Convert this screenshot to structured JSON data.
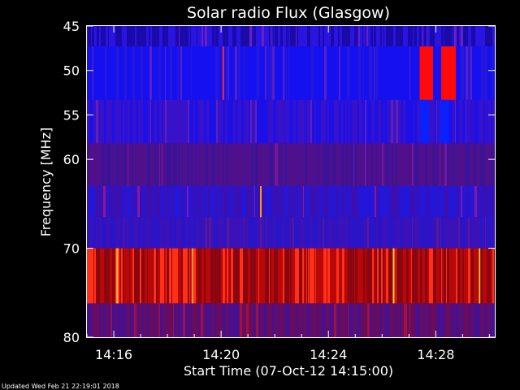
{
  "chart_data": {
    "type": "heatmap",
    "title": "Solar radio Flux (Glasgow)",
    "xlabel": "Start Time (07-Oct-12 14:15:00)",
    "ylabel": "Frequency [MHz]",
    "x_ticks": [
      "14:16",
      "14:20",
      "14:24",
      "14:28"
    ],
    "x_tick_minutes": [
      1,
      5,
      9,
      13
    ],
    "xlim_minutes": [
      0,
      15.2
    ],
    "y_ticks": [
      "45",
      "50",
      "55",
      "60",
      "70",
      "80"
    ],
    "y_tick_values": [
      45,
      50,
      55,
      60,
      70,
      80
    ],
    "ylim": [
      45,
      80
    ],
    "bands": [
      {
        "f0": 45,
        "f1": 47.3,
        "base": "#2a14e0",
        "alt": "#1a0aa8",
        "hot": "#6a20c0",
        "density": 0.55,
        "hotP": 0.05
      },
      {
        "f0": 47.3,
        "f1": 53.3,
        "base": "#1410f0",
        "alt": "#2818d8",
        "hot": "#5a20c8",
        "density": 0.25,
        "hotP": 0.04
      },
      {
        "f0": 53.3,
        "f1": 58.2,
        "base": "#3812c8",
        "alt": "#1c10e8",
        "hot": "#6020b8",
        "density": 0.5,
        "hotP": 0.05
      },
      {
        "f0": 58.2,
        "f1": 63.0,
        "base": "#50108c",
        "alt": "#3a1498",
        "hot": "#7018a0",
        "density": 0.45,
        "hotP": 0.05
      },
      {
        "f0": 63.0,
        "f1": 66.5,
        "base": "#2416d8",
        "alt": "#3a10b0",
        "hot": "#8818a0",
        "density": 0.5,
        "hotP": 0.06
      },
      {
        "f0": 66.5,
        "f1": 70.0,
        "base": "#3a12b8",
        "alt": "#2a14c8",
        "hot": "#5a1898",
        "density": 0.45,
        "hotP": 0.04
      },
      {
        "f0": 70.0,
        "f1": 76.2,
        "base": "#b80808",
        "alt": "#8a0610",
        "hot": "#ff3018",
        "density": 0.6,
        "hotP": 0.22
      },
      {
        "f0": 76.2,
        "f1": 80.0,
        "base": "#48108c",
        "alt": "#6a0c5c",
        "hot": "#a01040",
        "density": 0.5,
        "hotP": 0.06
      }
    ],
    "bursts": [
      {
        "t0": 12.4,
        "t1": 12.9,
        "f0": 47.3,
        "f1": 53.3,
        "color": "#ff0a0a"
      },
      {
        "t0": 13.2,
        "t1": 13.75,
        "f0": 47.3,
        "f1": 53.3,
        "color": "#ff0a0a"
      },
      {
        "t0": 12.4,
        "t1": 12.75,
        "f0": 53.3,
        "f1": 58.2,
        "color": "#0a20ff"
      },
      {
        "t0": 13.15,
        "t1": 13.5,
        "f0": 53.3,
        "f1": 58.2,
        "color": "#0a20ff"
      }
    ],
    "spikes": [
      {
        "t": 5.05,
        "f0": 47.3,
        "f1": 53.3,
        "color": "#ff2a2a"
      },
      {
        "t": 6.45,
        "f0": 63.0,
        "f1": 66.5,
        "color": "#ff9a20"
      },
      {
        "t": 11.4,
        "f0": 70.0,
        "f1": 76.2,
        "color": "#ffd040"
      },
      {
        "t": 1.1,
        "f0": 70.0,
        "f1": 76.2,
        "color": "#ffc040"
      },
      {
        "t": 3.9,
        "f0": 70.0,
        "f1": 76.2,
        "color": "#ff9a30"
      },
      {
        "t": 14.6,
        "f0": 70.0,
        "f1": 76.2,
        "color": "#ffb030"
      }
    ]
  },
  "footer": {
    "updated": "Updated Wed Feb 21 22:19:01 2018"
  }
}
